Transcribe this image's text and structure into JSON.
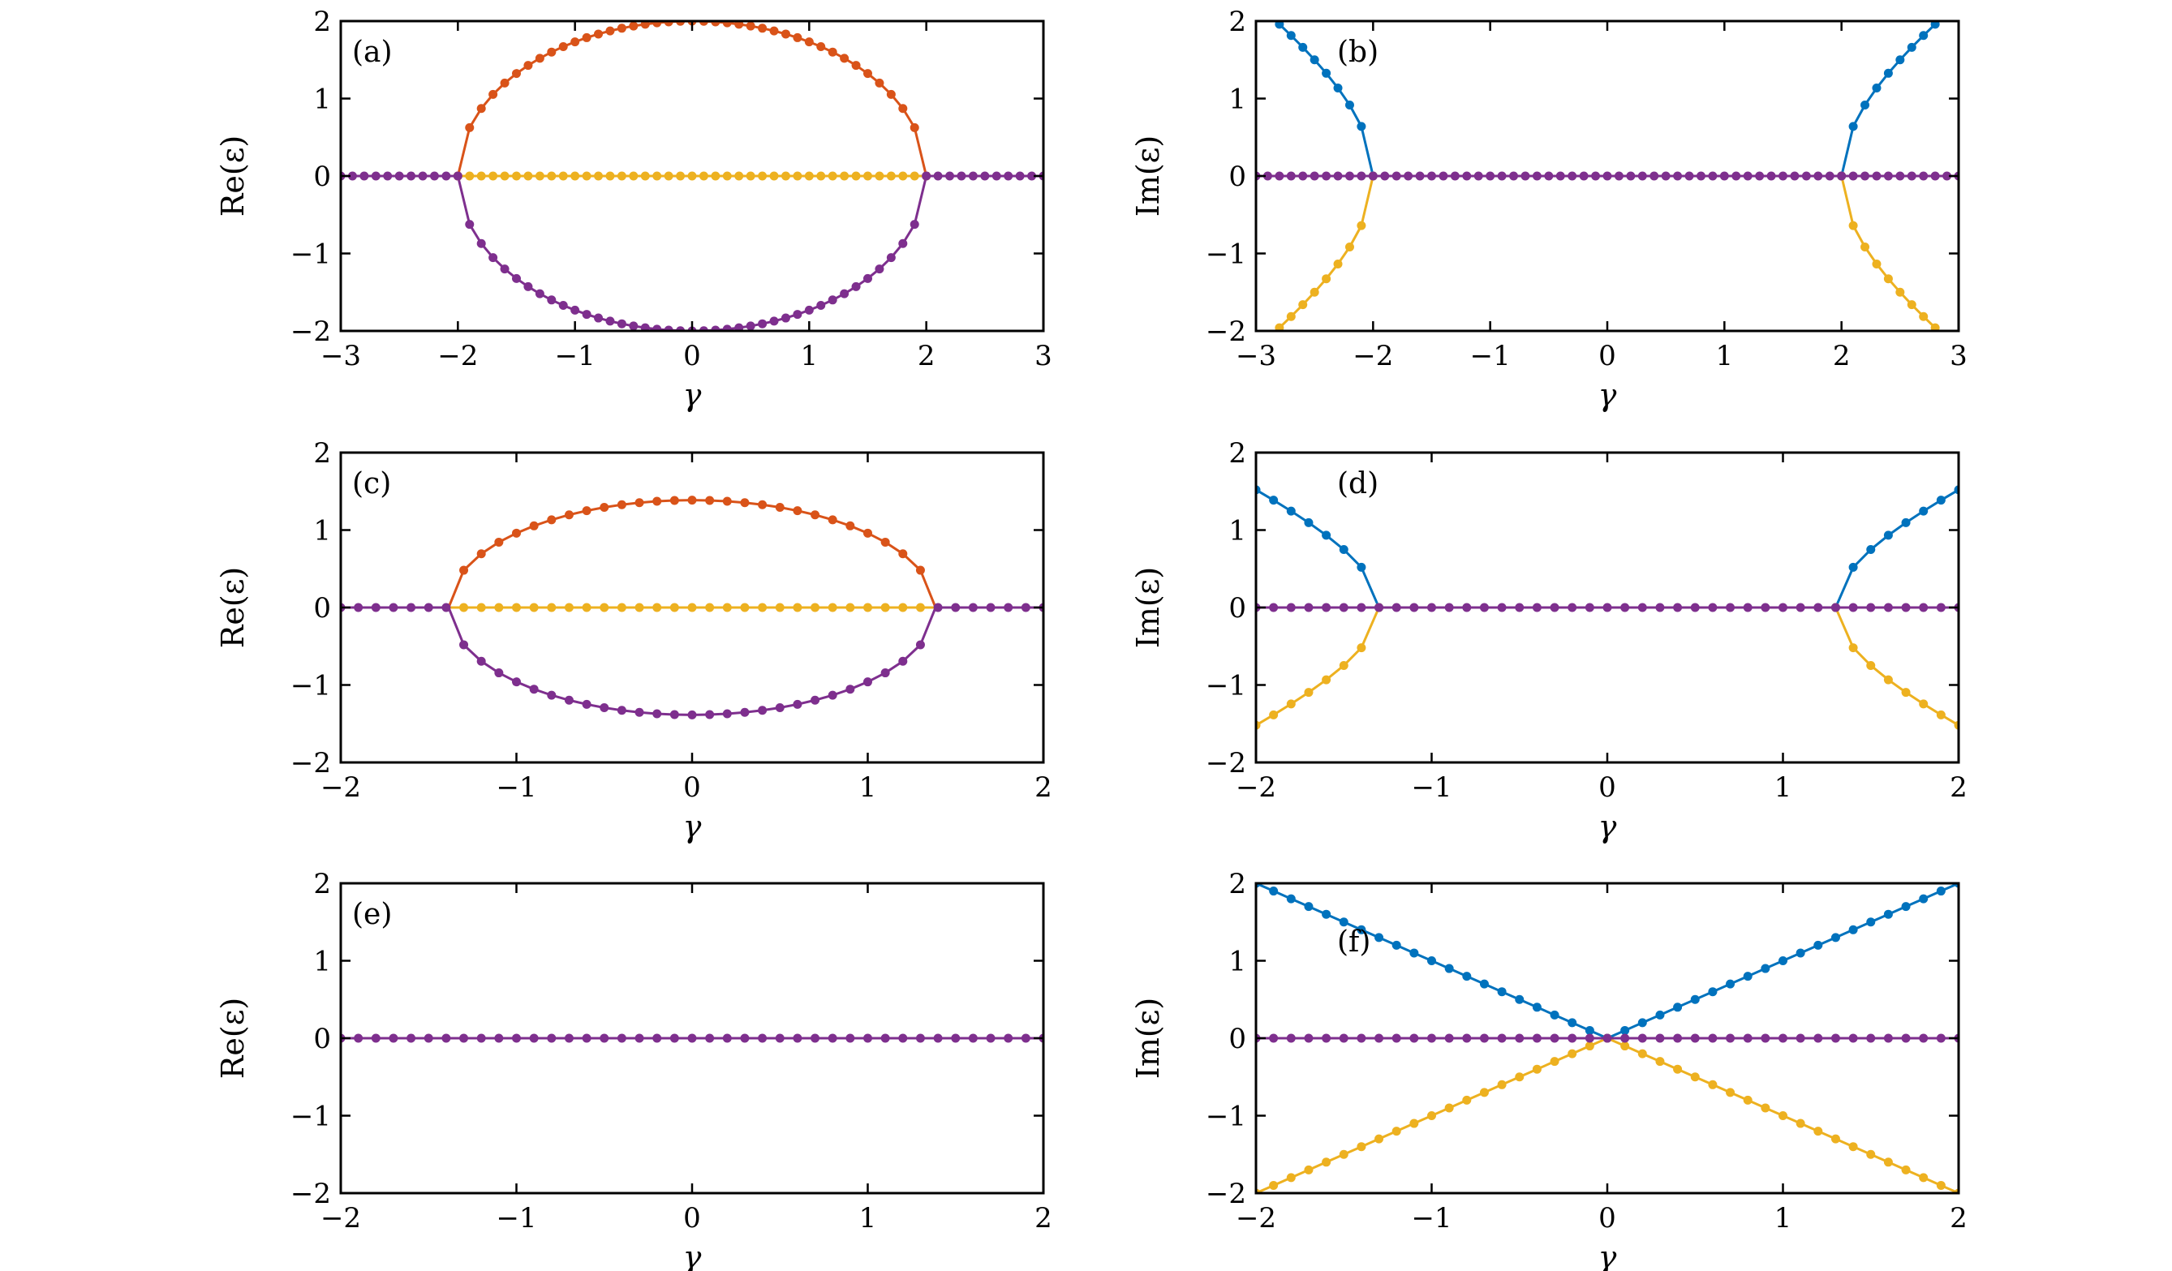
{
  "figure": {
    "colors": {
      "orange": "#d95319",
      "purple": "#7e2f8e",
      "yellow": "#edb120",
      "blue": "#0072bd"
    }
  },
  "chart_data": [
    {
      "type": "line",
      "tag": "(a)",
      "xlabel": "γ",
      "ylabel": "Re(ε)",
      "xlim": [
        -3,
        3
      ],
      "ylim": [
        -2,
        2
      ],
      "xticks": [
        -3,
        -2,
        -1,
        0,
        1,
        2,
        3
      ],
      "xtick_labels": [
        "−3",
        "−2",
        "−1",
        "0",
        "1",
        "2",
        "3"
      ],
      "yticks": [
        -2,
        -1,
        0,
        1,
        2
      ],
      "ytick_labels": [
        "−2",
        "−1",
        "0",
        "1",
        "2"
      ],
      "series": [
        {
          "color": "orange",
          "model": "re_plus",
          "g0": 2,
          "range": [
            -3,
            3
          ],
          "n": 61
        },
        {
          "color": "purple",
          "model": "re_minus",
          "g0": 2,
          "range": [
            -3,
            3
          ],
          "n": 61
        },
        {
          "color": "yellow",
          "model": "re_zero_inside",
          "g0": 2,
          "range": [
            -3,
            3
          ],
          "n": 61
        },
        {
          "color": "purple",
          "model": "re_zero_outside",
          "g0": 2,
          "range": [
            -3,
            3
          ],
          "n": 61
        }
      ]
    },
    {
      "type": "line",
      "tag": "(b)",
      "xlabel": "γ",
      "ylabel": "Im(ε)",
      "xlim": [
        -3,
        3
      ],
      "ylim": [
        -2,
        2
      ],
      "xticks": [
        -3,
        -2,
        -1,
        0,
        1,
        2,
        3
      ],
      "xtick_labels": [
        "−3",
        "−2",
        "−1",
        "0",
        "1",
        "2",
        "3"
      ],
      "yticks": [
        -2,
        -1,
        0,
        1,
        2
      ],
      "ytick_labels": [
        "−2",
        "−1",
        "0",
        "1",
        "2"
      ],
      "series": [
        {
          "color": "blue",
          "model": "im_plus",
          "g0": 2,
          "range": [
            -3,
            3
          ],
          "n": 61
        },
        {
          "color": "yellow",
          "model": "im_minus",
          "g0": 2,
          "range": [
            -3,
            3
          ],
          "n": 61
        },
        {
          "color": "purple",
          "model": "zero",
          "g0": 2,
          "range": [
            -3,
            3
          ],
          "n": 61
        }
      ]
    },
    {
      "type": "line",
      "tag": "(c)",
      "xlabel": "γ",
      "ylabel": "Re(ε)",
      "xlim": [
        -2,
        2
      ],
      "ylim": [
        -2,
        2
      ],
      "xticks": [
        -2,
        -1,
        0,
        1,
        2
      ],
      "xtick_labels": [
        "−2",
        "−1",
        "0",
        "1",
        "2"
      ],
      "yticks": [
        -2,
        -1,
        0,
        1,
        2
      ],
      "ytick_labels": [
        "−2",
        "−1",
        "0",
        "1",
        "2"
      ],
      "series": [
        {
          "color": "orange",
          "model": "re_plus",
          "g0": 1.3862,
          "range": [
            -2,
            2
          ],
          "n": 41
        },
        {
          "color": "purple",
          "model": "re_minus",
          "g0": 1.3862,
          "range": [
            -2,
            2
          ],
          "n": 41
        },
        {
          "color": "yellow",
          "model": "re_zero_inside",
          "g0": 1.3862,
          "range": [
            -2,
            2
          ],
          "n": 41
        },
        {
          "color": "purple",
          "model": "re_zero_outside",
          "g0": 1.3862,
          "range": [
            -2,
            2
          ],
          "n": 41
        }
      ]
    },
    {
      "type": "line",
      "tag": "(d)",
      "xlabel": "γ",
      "ylabel": "Im(ε)",
      "xlim": [
        -2,
        2
      ],
      "ylim": [
        -2,
        2
      ],
      "xticks": [
        -2,
        -1,
        0,
        1,
        2
      ],
      "xtick_labels": [
        "−2",
        "−1",
        "0",
        "1",
        "2"
      ],
      "yticks": [
        -2,
        -1,
        0,
        1,
        2
      ],
      "ytick_labels": [
        "−2",
        "−1",
        "0",
        "1",
        "2"
      ],
      "series": [
        {
          "color": "blue",
          "model": "im_plus",
          "g0": 1.3,
          "range": [
            -2,
            2
          ],
          "n": 41
        },
        {
          "color": "yellow",
          "model": "im_minus",
          "g0": 1.3,
          "range": [
            -2,
            2
          ],
          "n": 41
        },
        {
          "color": "purple",
          "model": "zero",
          "g0": 1.3,
          "range": [
            -2,
            2
          ],
          "n": 41
        }
      ]
    },
    {
      "type": "line",
      "tag": "(e)",
      "xlabel": "γ",
      "ylabel": "Re(ε)",
      "xlim": [
        -2,
        2
      ],
      "ylim": [
        -2,
        2
      ],
      "xticks": [
        -2,
        -1,
        0,
        1,
        2
      ],
      "xtick_labels": [
        "−2",
        "−1",
        "0",
        "1",
        "2"
      ],
      "yticks": [
        -2,
        -1,
        0,
        1,
        2
      ],
      "ytick_labels": [
        "−2",
        "−1",
        "0",
        "1",
        "2"
      ],
      "series": [
        {
          "color": "purple",
          "model": "zero",
          "g0": 0,
          "range": [
            -2,
            2
          ],
          "n": 41
        }
      ]
    },
    {
      "type": "line",
      "tag": "(f)",
      "xlabel": "γ",
      "ylabel": "Im(ε)",
      "xlim": [
        -2,
        2
      ],
      "ylim": [
        -2,
        2
      ],
      "xticks": [
        -2,
        -1,
        0,
        1,
        2
      ],
      "xtick_labels": [
        "−2",
        "−1",
        "0",
        "1",
        "2"
      ],
      "yticks": [
        -2,
        -1,
        0,
        1,
        2
      ],
      "ytick_labels": [
        "−2",
        "−1",
        "0",
        "1",
        "2"
      ],
      "series": [
        {
          "color": "blue",
          "model": "abs",
          "g0": 0,
          "range": [
            -2,
            2
          ],
          "n": 41
        },
        {
          "color": "yellow",
          "model": "neg_abs",
          "g0": 0,
          "range": [
            -2,
            2
          ],
          "n": 41
        },
        {
          "color": "purple",
          "model": "zero",
          "g0": 0,
          "range": [
            -2,
            2
          ],
          "n": 41
        }
      ]
    }
  ]
}
